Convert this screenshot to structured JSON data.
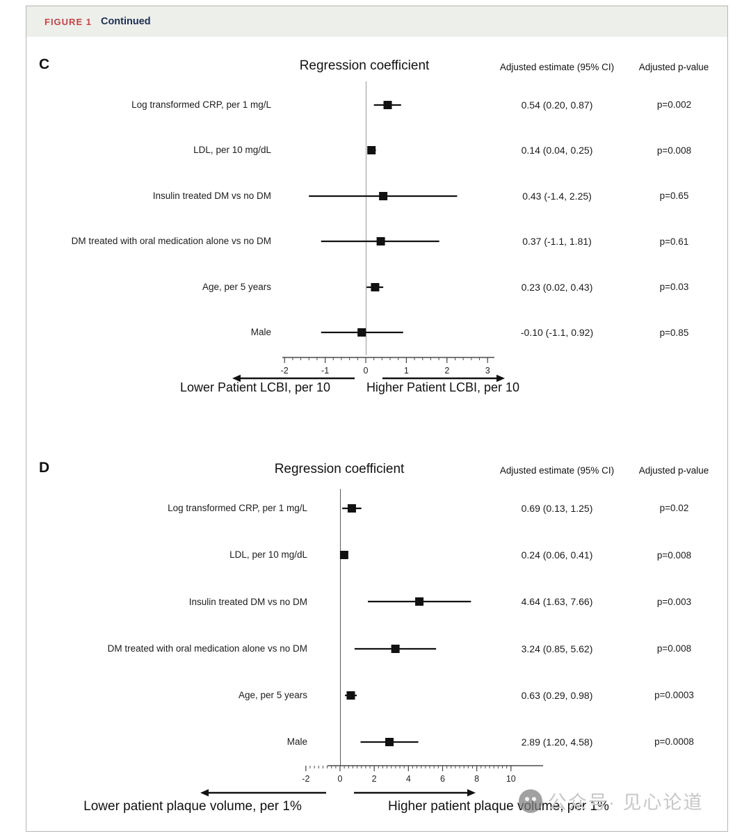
{
  "figure_header": {
    "label": "FIGURE 1",
    "title": "Continued"
  },
  "watermark": {
    "text": "公众号· 见心论道",
    "logo": "wechat-official-account-logo"
  },
  "colors": {
    "figure_label_red": "#c04646",
    "continued_navy": "#1d2e4e",
    "header_band": "#edefeb",
    "marker_black": "#111111",
    "watermark_gray": "#c7c7c7"
  },
  "chart_data": [
    {
      "type": "scatter",
      "variant": "forest-plot",
      "panel": "C",
      "title": "Regression coefficient",
      "columns": {
        "estimate": "Adjusted estimate (95% CI)",
        "pvalue": "Adjusted p-value"
      },
      "rows": [
        {
          "label": "Log transformed CRP, per 1 mg/L",
          "estimate": 0.54,
          "ci_low": 0.2,
          "ci_high": 0.87,
          "estimate_text": "0.54 (0.20, 0.87)",
          "p_text": "p=0.002"
        },
        {
          "label": "LDL, per 10 mg/dL",
          "estimate": 0.14,
          "ci_low": 0.04,
          "ci_high": 0.25,
          "estimate_text": "0.14 (0.04, 0.25)",
          "p_text": "p=0.008"
        },
        {
          "label": "Insulin treated DM vs no DM",
          "estimate": 0.43,
          "ci_low": -1.4,
          "ci_high": 2.25,
          "estimate_text": "0.43 (-1.4, 2.25)",
          "p_text": "p=0.65"
        },
        {
          "label": "DM treated with oral medication alone vs no DM",
          "estimate": 0.37,
          "ci_low": -1.1,
          "ci_high": 1.81,
          "estimate_text": "0.37 (-1.1, 1.81)",
          "p_text": "p=0.61"
        },
        {
          "label": "Age, per 5 years",
          "estimate": 0.23,
          "ci_low": 0.02,
          "ci_high": 0.43,
          "estimate_text": "0.23 (0.02, 0.43)",
          "p_text": "p=0.03"
        },
        {
          "label": "Male",
          "estimate": -0.1,
          "ci_low": -1.1,
          "ci_high": 0.92,
          "estimate_text": "-0.10 (-1.1, 0.92)",
          "p_text": "p=0.85"
        }
      ],
      "xlim": [
        -2,
        3
      ],
      "major_ticks": [
        -2,
        -1,
        0,
        1,
        2,
        3
      ],
      "minor_step": 0.2,
      "zero_reference": 0,
      "arrow_left_label": "Lower Patient LCBI, per 10",
      "arrow_right_label": "Higher Patient LCBI, per 10"
    },
    {
      "type": "scatter",
      "variant": "forest-plot",
      "panel": "D",
      "title": "Regression coefficient",
      "columns": {
        "estimate": "Adjusted estimate (95% CI)",
        "pvalue": "Adjusted p-value"
      },
      "rows": [
        {
          "label": "Log transformed CRP, per 1 mg/L",
          "estimate": 0.69,
          "ci_low": 0.13,
          "ci_high": 1.25,
          "estimate_text": "0.69 (0.13, 1.25)",
          "p_text": "p=0.02"
        },
        {
          "label": "LDL, per 10 mg/dL",
          "estimate": 0.24,
          "ci_low": 0.06,
          "ci_high": 0.41,
          "estimate_text": "0.24 (0.06, 0.41)",
          "p_text": "p=0.008"
        },
        {
          "label": "Insulin treated DM vs no DM",
          "estimate": 4.64,
          "ci_low": 1.63,
          "ci_high": 7.66,
          "estimate_text": "4.64 (1.63, 7.66)",
          "p_text": "p=0.003"
        },
        {
          "label": "DM treated with oral medication alone vs no DM",
          "estimate": 3.24,
          "ci_low": 0.85,
          "ci_high": 5.62,
          "estimate_text": "3.24 (0.85, 5.62)",
          "p_text": "p=0.008"
        },
        {
          "label": "Age, per 5 years",
          "estimate": 0.63,
          "ci_low": 0.29,
          "ci_high": 0.98,
          "estimate_text": "0.63 (0.29, 0.98)",
          "p_text": "p=0.0003"
        },
        {
          "label": "Male",
          "estimate": 2.89,
          "ci_low": 1.2,
          "ci_high": 4.58,
          "estimate_text": "2.89 (1.20, 4.58)",
          "p_text": "p=0.0008"
        }
      ],
      "xlim": [
        -2,
        10
      ],
      "major_ticks": [
        -2,
        0,
        2,
        4,
        6,
        8,
        10
      ],
      "minor_step": 0.25,
      "zero_reference": 0,
      "arrow_left_label": "Lower patient plaque volume, per 1%",
      "arrow_right_label": "Higher patient plaque volume, per 1%"
    }
  ]
}
